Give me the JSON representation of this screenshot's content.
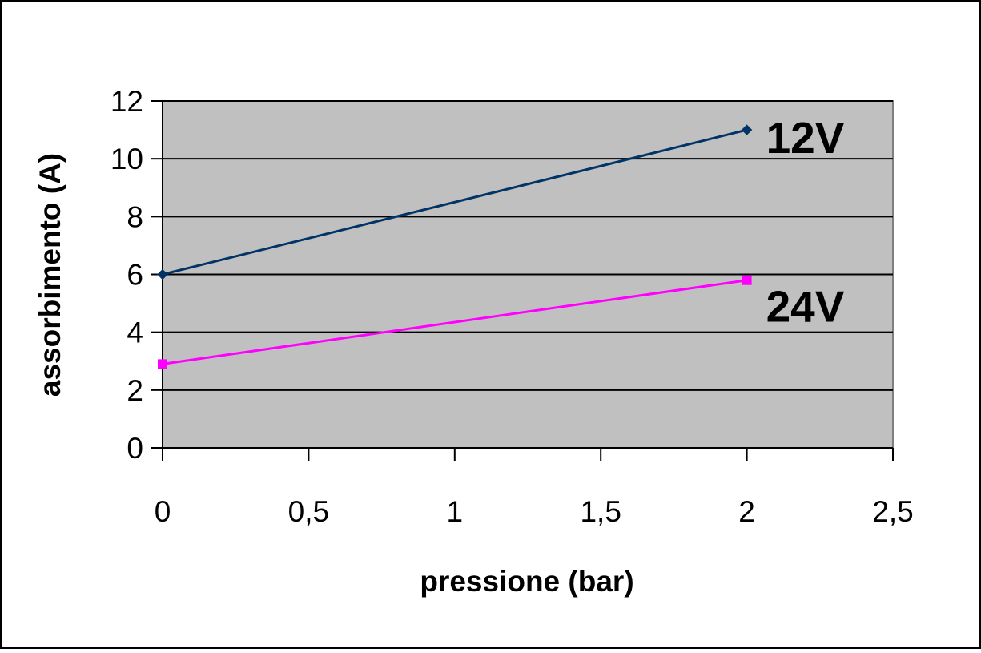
{
  "chart_data": {
    "type": "line",
    "title": "",
    "xlabel": "pressione (bar)",
    "ylabel": "assorbimento (A)",
    "xlim": [
      0,
      2.5
    ],
    "ylim": [
      0,
      12
    ],
    "x_ticks": [
      {
        "value": 0,
        "label": "0"
      },
      {
        "value": 0.5,
        "label": "0,5"
      },
      {
        "value": 1,
        "label": "1"
      },
      {
        "value": 1.5,
        "label": "1,5"
      },
      {
        "value": 2,
        "label": "2"
      },
      {
        "value": 2.5,
        "label": "2,5"
      }
    ],
    "y_ticks": [
      {
        "value": 0,
        "label": "0"
      },
      {
        "value": 2,
        "label": "2"
      },
      {
        "value": 4,
        "label": "4"
      },
      {
        "value": 6,
        "label": "6"
      },
      {
        "value": 8,
        "label": "8"
      },
      {
        "value": 10,
        "label": "10"
      },
      {
        "value": 12,
        "label": "12"
      }
    ],
    "grid": "horizontal",
    "plot_background": "#c0c0c0",
    "series": [
      {
        "name": "12V",
        "color": "#003366",
        "marker": "diamond",
        "x": [
          0,
          2
        ],
        "y": [
          6,
          11
        ]
      },
      {
        "name": "24V",
        "color": "#ff00ff",
        "marker": "square",
        "x": [
          0,
          2
        ],
        "y": [
          2.9,
          5.8
        ]
      }
    ]
  }
}
